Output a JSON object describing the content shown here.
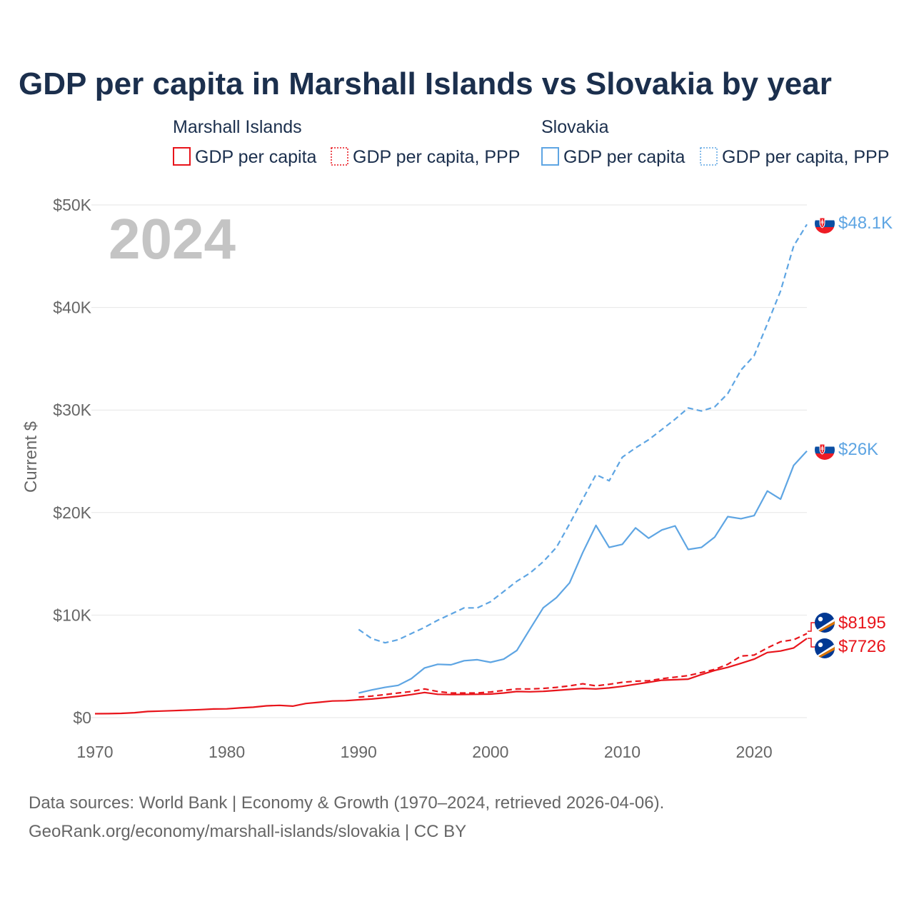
{
  "title": "GDP per capita in Marshall Islands vs Slovakia by year",
  "year_highlight": "2024",
  "legend": {
    "marshall": {
      "group": "Marshall Islands",
      "gdp": "GDP per capita",
      "ppp": "GDP per capita, PPP"
    },
    "slovakia": {
      "group": "Slovakia",
      "gdp": "GDP per capita",
      "ppp": "GDP per capita, PPP"
    }
  },
  "colors": {
    "marshall": "#e8141b",
    "slovakia": "#5ea5e3",
    "title": "#1b2f4d",
    "axis_text": "#666666",
    "grid": "#e6e6e6"
  },
  "end_labels": {
    "slovakia_ppp": "$48.1K",
    "slovakia_gdp": "$26K",
    "marshall_ppp": "$8195",
    "marshall_gdp": "$7726"
  },
  "icons": {
    "slovakia_flag": "slovakia-flag-icon",
    "marshall_flag": "marshall-islands-flag-icon"
  },
  "source": {
    "line1": "Data sources: World Bank | Economy & Growth (1970–2024, retrieved 2026-04-06).",
    "line2": "GeoRank.org/economy/marshall-islands/slovakia | CC BY"
  },
  "chart_data": {
    "type": "line",
    "title": "GDP per capita in Marshall Islands vs Slovakia by year",
    "xlabel": "",
    "ylabel": "Current $",
    "xlim": [
      1970,
      2024
    ],
    "ylim": [
      0,
      50000
    ],
    "x_ticks": [
      1970,
      1980,
      1990,
      2000,
      2010,
      2020
    ],
    "x_tick_labels": [
      "1970",
      "1980",
      "1990",
      "2000",
      "2010",
      "2020"
    ],
    "y_ticks": [
      0,
      10000,
      20000,
      30000,
      40000,
      50000
    ],
    "y_tick_labels": [
      "$0",
      "$10K",
      "$20K",
      "$30K",
      "$40K",
      "$50K"
    ],
    "grid": true,
    "legend_position": "top",
    "series": [
      {
        "name": "Marshall Islands GDP per capita",
        "country": "marshall",
        "style": "solid",
        "x": [
          1970,
          1971,
          1972,
          1973,
          1974,
          1975,
          1976,
          1977,
          1978,
          1979,
          1980,
          1981,
          1982,
          1983,
          1984,
          1985,
          1986,
          1987,
          1988,
          1989,
          1990,
          1991,
          1992,
          1993,
          1994,
          1995,
          1996,
          1997,
          1998,
          1999,
          2000,
          2001,
          2002,
          2003,
          2004,
          2005,
          2006,
          2007,
          2008,
          2009,
          2010,
          2011,
          2012,
          2013,
          2014,
          2015,
          2016,
          2017,
          2018,
          2019,
          2020,
          2021,
          2022,
          2023,
          2024
        ],
        "values": [
          380,
          390,
          420,
          480,
          600,
          640,
          680,
          730,
          780,
          840,
          860,
          950,
          1020,
          1150,
          1200,
          1120,
          1380,
          1500,
          1620,
          1650,
          1740,
          1820,
          1940,
          2080,
          2250,
          2450,
          2280,
          2250,
          2260,
          2280,
          2300,
          2400,
          2550,
          2520,
          2560,
          2650,
          2750,
          2850,
          2800,
          2900,
          3050,
          3250,
          3450,
          3650,
          3700,
          3750,
          4200,
          4600,
          4900,
          5300,
          5700,
          6350,
          6500,
          6800,
          7726
        ]
      },
      {
        "name": "Marshall Islands GDP per capita, PPP",
        "country": "marshall",
        "style": "dashed",
        "x": [
          1990,
          1991,
          1992,
          1993,
          1994,
          1995,
          1996,
          1997,
          1998,
          1999,
          2000,
          2001,
          2002,
          2003,
          2004,
          2005,
          2006,
          2007,
          2008,
          2009,
          2010,
          2011,
          2012,
          2013,
          2014,
          2015,
          2016,
          2017,
          2018,
          2019,
          2020,
          2021,
          2022,
          2023,
          2024
        ],
        "values": [
          2000,
          2100,
          2250,
          2400,
          2550,
          2800,
          2550,
          2400,
          2400,
          2400,
          2500,
          2650,
          2800,
          2800,
          2850,
          2950,
          3100,
          3300,
          3100,
          3250,
          3450,
          3550,
          3600,
          3800,
          3950,
          4100,
          4400,
          4700,
          5200,
          6000,
          6100,
          6800,
          7400,
          7600,
          8195
        ]
      },
      {
        "name": "Slovakia GDP per capita",
        "country": "slovakia",
        "style": "solid",
        "x": [
          1990,
          1991,
          1992,
          1993,
          1994,
          1995,
          1996,
          1997,
          1998,
          1999,
          2000,
          2001,
          2002,
          2003,
          2004,
          2005,
          2006,
          2007,
          2008,
          2009,
          2010,
          2011,
          2012,
          2013,
          2014,
          2015,
          2016,
          2017,
          2018,
          2019,
          2020,
          2021,
          2022,
          2023,
          2024
        ],
        "values": [
          2400,
          2700,
          2950,
          3150,
          3800,
          4850,
          5200,
          5150,
          5550,
          5650,
          5400,
          5700,
          6550,
          8650,
          10700,
          11700,
          13150,
          16100,
          18750,
          16600,
          16900,
          18500,
          17500,
          18300,
          18700,
          16400,
          16600,
          17600,
          19600,
          19400,
          19700,
          22100,
          21300,
          24600,
          26000
        ]
      },
      {
        "name": "Slovakia GDP per capita, PPP",
        "country": "slovakia",
        "style": "dashed",
        "x": [
          1990,
          1991,
          1992,
          1993,
          1994,
          1995,
          1996,
          1997,
          1998,
          1999,
          2000,
          2001,
          2002,
          2003,
          2004,
          2005,
          2006,
          2007,
          2008,
          2009,
          2010,
          2011,
          2012,
          2013,
          2014,
          2015,
          2016,
          2017,
          2018,
          2019,
          2020,
          2021,
          2022,
          2023,
          2024
        ],
        "values": [
          8600,
          7700,
          7300,
          7600,
          8200,
          8800,
          9500,
          10100,
          10700,
          10700,
          11300,
          12300,
          13300,
          14100,
          15200,
          16600,
          18900,
          21300,
          23700,
          23100,
          25400,
          26300,
          27100,
          28100,
          29100,
          30200,
          29900,
          30300,
          31600,
          33900,
          35300,
          38400,
          41600,
          46000,
          48100
        ]
      }
    ]
  }
}
